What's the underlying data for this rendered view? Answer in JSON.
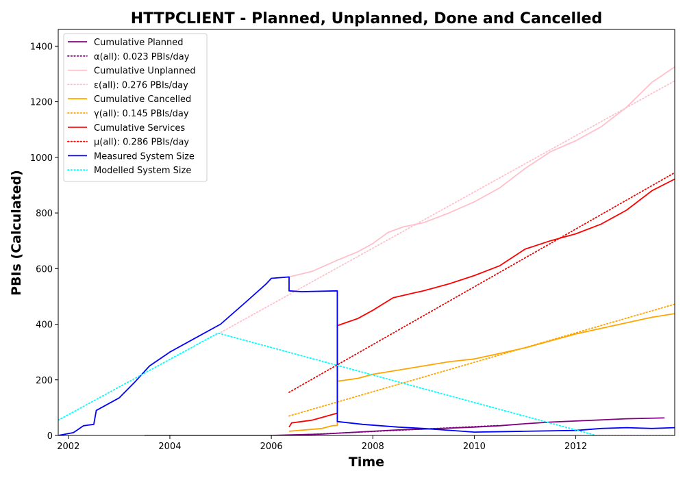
{
  "chart_data": {
    "type": "line",
    "title": "HTTPCLIENT - Planned, Unplanned, Done  and Cancelled",
    "xlabel": "Time",
    "ylabel": "PBIs (Calculated)",
    "xlim": [
      2001.8,
      2013.95
    ],
    "ylim": [
      0,
      1460
    ],
    "x_ticks": [
      2002,
      2004,
      2006,
      2008,
      2010,
      2012
    ],
    "y_ticks": [
      0,
      200,
      400,
      600,
      800,
      1000,
      1200,
      1400
    ],
    "grid": false,
    "legend_position": "top-left",
    "series": [
      {
        "name": "Cumulative Planned",
        "color": "#800080",
        "style": "solid",
        "points": [
          [
            2003.5,
            0
          ],
          [
            2006.0,
            0
          ],
          [
            2006.4,
            2
          ],
          [
            2007.0,
            5
          ],
          [
            2007.5,
            10
          ],
          [
            2008.0,
            15
          ],
          [
            2008.5,
            20
          ],
          [
            2009.0,
            23
          ],
          [
            2009.5,
            26
          ],
          [
            2010.0,
            30
          ],
          [
            2010.5,
            35
          ],
          [
            2011.0,
            42
          ],
          [
            2011.5,
            48
          ],
          [
            2012.0,
            52
          ],
          [
            2012.5,
            56
          ],
          [
            2013.0,
            60
          ],
          [
            2013.75,
            63
          ]
        ]
      },
      {
        "name": "α(all): 0.023 PBIs/day",
        "color": "#800080",
        "style": "dotted",
        "points": [
          [
            2006.35,
            0
          ],
          [
            2010.5,
            36
          ]
        ]
      },
      {
        "name": "Cumulative Unplanned",
        "color": "#ffc0cb",
        "style": "solid",
        "points": [
          [
            2006.35,
            570
          ],
          [
            2006.8,
            590
          ],
          [
            2007.3,
            630
          ],
          [
            2007.7,
            660
          ],
          [
            2008.0,
            690
          ],
          [
            2008.3,
            730
          ],
          [
            2008.6,
            750
          ],
          [
            2009.0,
            765
          ],
          [
            2009.5,
            800
          ],
          [
            2010.0,
            840
          ],
          [
            2010.5,
            890
          ],
          [
            2011.0,
            960
          ],
          [
            2011.5,
            1020
          ],
          [
            2012.0,
            1060
          ],
          [
            2012.5,
            1110
          ],
          [
            2013.0,
            1180
          ],
          [
            2013.5,
            1270
          ],
          [
            2013.95,
            1325
          ]
        ]
      },
      {
        "name": "ε(all): 0.276 PBIs/day",
        "color": "#ffc0cb",
        "style": "dotted",
        "points": [
          [
            2004.9,
            360
          ],
          [
            2013.95,
            1275
          ]
        ]
      },
      {
        "name": "Cumulative Cancelled",
        "color": "#ffa500",
        "style": "solid",
        "points": [
          [
            2006.35,
            15
          ],
          [
            2007.0,
            25
          ],
          [
            2007.2,
            35
          ],
          [
            2007.3,
            36
          ],
          [
            2007.3,
            195
          ],
          [
            2007.7,
            205
          ],
          [
            2008.0,
            220
          ],
          [
            2008.5,
            235
          ],
          [
            2009.0,
            250
          ],
          [
            2009.5,
            265
          ],
          [
            2010.0,
            275
          ],
          [
            2010.5,
            295
          ],
          [
            2011.0,
            315
          ],
          [
            2011.5,
            340
          ],
          [
            2012.0,
            365
          ],
          [
            2012.5,
            385
          ],
          [
            2013.0,
            405
          ],
          [
            2013.5,
            425
          ],
          [
            2013.95,
            438
          ]
        ]
      },
      {
        "name": "γ(all): 0.145 PBIs/day",
        "color": "#ffa500",
        "style": "dotted",
        "points": [
          [
            2006.35,
            70
          ],
          [
            2013.95,
            472
          ]
        ]
      },
      {
        "name": "Cumulative Services",
        "color": "#ff0000",
        "style": "solid",
        "points": [
          [
            2006.35,
            30
          ],
          [
            2006.4,
            45
          ],
          [
            2006.8,
            55
          ],
          [
            2007.2,
            75
          ],
          [
            2007.3,
            80
          ],
          [
            2007.3,
            395
          ],
          [
            2007.7,
            420
          ],
          [
            2008.0,
            450
          ],
          [
            2008.4,
            495
          ],
          [
            2008.8,
            512
          ],
          [
            2009.0,
            520
          ],
          [
            2009.5,
            545
          ],
          [
            2010.0,
            575
          ],
          [
            2010.5,
            610
          ],
          [
            2011.0,
            670
          ],
          [
            2011.5,
            700
          ],
          [
            2012.0,
            725
          ],
          [
            2012.5,
            760
          ],
          [
            2013.0,
            810
          ],
          [
            2013.5,
            880
          ],
          [
            2013.95,
            922
          ]
        ]
      },
      {
        "name": "μ(all): 0.286 PBIs/day",
        "color": "#ff0000",
        "style": "dotted",
        "points": [
          [
            2006.35,
            155
          ],
          [
            2013.95,
            945
          ]
        ]
      },
      {
        "name": "Measured System Size",
        "color": "#0000ff",
        "style": "solid",
        "points": [
          [
            2001.8,
            0
          ],
          [
            2002.1,
            10
          ],
          [
            2002.3,
            35
          ],
          [
            2002.5,
            40
          ],
          [
            2002.55,
            90
          ],
          [
            2003.0,
            135
          ],
          [
            2003.3,
            190
          ],
          [
            2003.6,
            250
          ],
          [
            2004.0,
            300
          ],
          [
            2004.5,
            350
          ],
          [
            2005.0,
            400
          ],
          [
            2005.5,
            480
          ],
          [
            2005.9,
            545
          ],
          [
            2006.0,
            565
          ],
          [
            2006.35,
            570
          ],
          [
            2006.35,
            520
          ],
          [
            2006.6,
            517
          ],
          [
            2007.3,
            520
          ],
          [
            2007.3,
            50
          ],
          [
            2007.8,
            40
          ],
          [
            2008.5,
            30
          ],
          [
            2009.0,
            25
          ],
          [
            2010.0,
            12
          ],
          [
            2011.0,
            15
          ],
          [
            2012.0,
            18
          ],
          [
            2012.5,
            25
          ],
          [
            2013.0,
            28
          ],
          [
            2013.5,
            25
          ],
          [
            2013.95,
            28
          ]
        ]
      },
      {
        "name": "Modelled System Size",
        "color": "#00ffff",
        "style": "dotted",
        "points": [
          [
            2001.8,
            55
          ],
          [
            2004.95,
            368
          ],
          [
            2012.4,
            0
          ],
          [
            2013.95,
            0
          ]
        ]
      }
    ]
  }
}
